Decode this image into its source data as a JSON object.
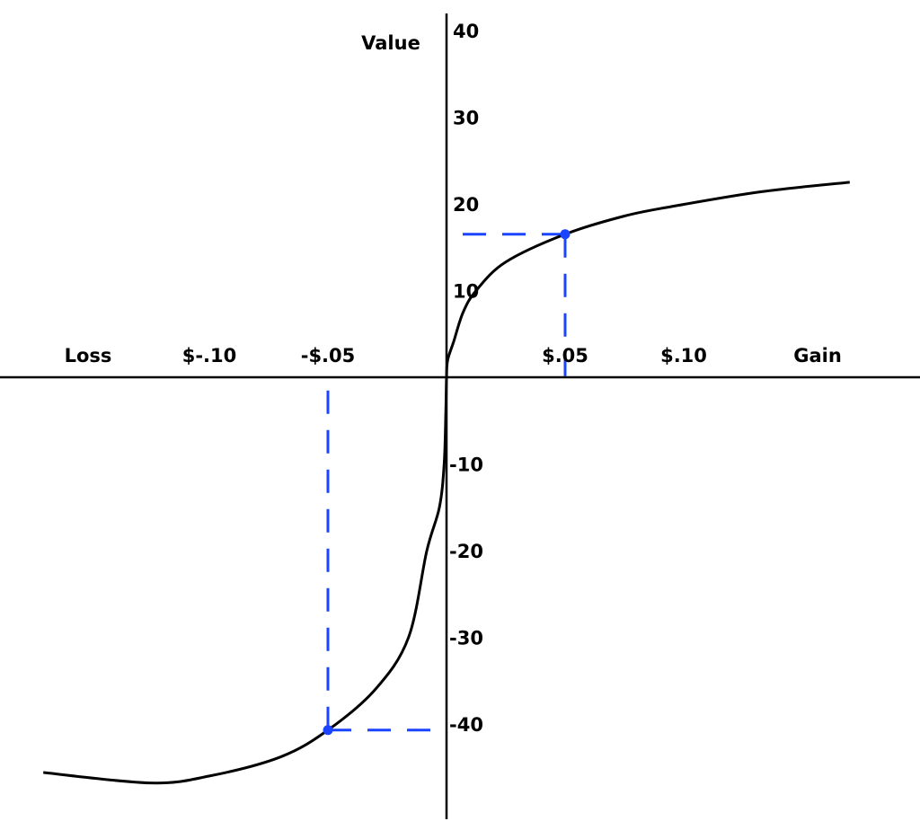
{
  "chart_data": {
    "type": "line",
    "title": "",
    "ylabel": "Value",
    "x_axis_end_labels": {
      "negative": "Loss",
      "positive": "Gain"
    },
    "x_ticks": [
      {
        "value": -0.1,
        "label": "$-.10"
      },
      {
        "value": -0.05,
        "label": "-$.05"
      },
      {
        "value": 0.05,
        "label": "$.05"
      },
      {
        "value": 0.1,
        "label": "$.10"
      }
    ],
    "y_ticks": [
      {
        "value": 40,
        "label": "40"
      },
      {
        "value": 30,
        "label": "30"
      },
      {
        "value": 20,
        "label": "20"
      },
      {
        "value": 10,
        "label": "10"
      },
      {
        "value": -10,
        "label": "-10"
      },
      {
        "value": -20,
        "label": "-20"
      },
      {
        "value": -30,
        "label": "-30"
      },
      {
        "value": -40,
        "label": "-40"
      }
    ],
    "xlim": [
      -0.188,
      0.199
    ],
    "ylim": [
      -51,
      42
    ],
    "grid": false,
    "series": [
      {
        "color": "#000000",
        "points": [
          [
            -0.17,
            -45.6
          ],
          [
            -0.125,
            -46.8
          ],
          [
            -0.1,
            -46
          ],
          [
            -0.07,
            -43.8
          ],
          [
            -0.05,
            -40.7
          ],
          [
            -0.03,
            -36
          ],
          [
            -0.016,
            -30
          ],
          [
            -0.0083,
            -20
          ],
          [
            -0.003,
            -15
          ],
          [
            -0.001,
            -10
          ],
          [
            -0.0003,
            -4
          ],
          [
            0,
            0
          ],
          [
            0.0005,
            2
          ],
          [
            0.003,
            4.1
          ],
          [
            0.007,
            7.5
          ],
          [
            0.0125,
            10
          ],
          [
            0.025,
            13.3
          ],
          [
            0.05,
            16.5
          ],
          [
            0.075,
            18.6
          ],
          [
            0.095,
            19.7
          ],
          [
            0.1325,
            21.4
          ],
          [
            0.17,
            22.5
          ]
        ]
      }
    ],
    "highlighted_points": [
      {
        "x": 0.05,
        "y": 16.5,
        "color": "#1a44ff",
        "dashed_guides": true
      },
      {
        "x": -0.05,
        "y": -40.7,
        "color": "#1a44ff",
        "dashed_guides": true
      }
    ]
  }
}
